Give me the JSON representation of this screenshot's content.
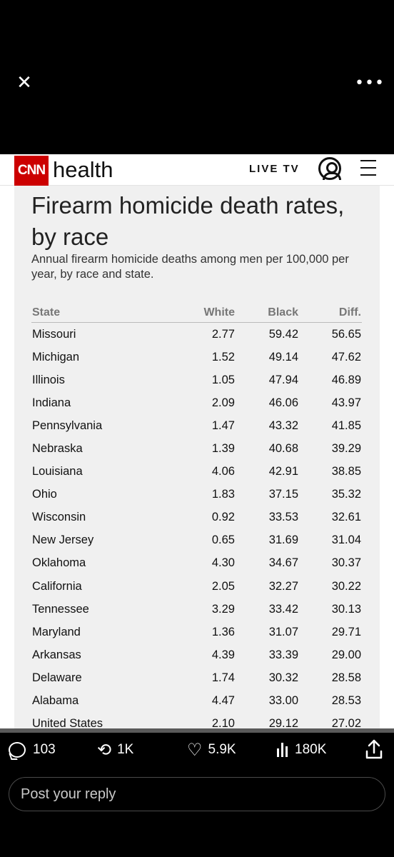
{
  "viewer": {
    "close_icon": "close-icon",
    "more_icon": "more-icon"
  },
  "cnn": {
    "logo_text": "CNN",
    "section": "health",
    "live_tv": "LIVE TV"
  },
  "article": {
    "title": "Firearm homicide death rates, by race",
    "subtitle": "Annual firearm homicide deaths among men per 100,000 per year, by race and state."
  },
  "table": {
    "headers": [
      "State",
      "White",
      "Black",
      "Diff."
    ],
    "rows": [
      [
        "Missouri",
        "2.77",
        "59.42",
        "56.65"
      ],
      [
        "Michigan",
        "1.52",
        "49.14",
        "47.62"
      ],
      [
        "Illinois",
        "1.05",
        "47.94",
        "46.89"
      ],
      [
        "Indiana",
        "2.09",
        "46.06",
        "43.97"
      ],
      [
        "Pennsylvania",
        "1.47",
        "43.32",
        "41.85"
      ],
      [
        "Nebraska",
        "1.39",
        "40.68",
        "39.29"
      ],
      [
        "Louisiana",
        "4.06",
        "42.91",
        "38.85"
      ],
      [
        "Ohio",
        "1.83",
        "37.15",
        "35.32"
      ],
      [
        "Wisconsin",
        "0.92",
        "33.53",
        "32.61"
      ],
      [
        "New Jersey",
        "0.65",
        "31.69",
        "31.04"
      ],
      [
        "Oklahoma",
        "4.30",
        "34.67",
        "30.37"
      ],
      [
        "California",
        "2.05",
        "32.27",
        "30.22"
      ],
      [
        "Tennessee",
        "3.29",
        "33.42",
        "30.13"
      ],
      [
        "Maryland",
        "1.36",
        "31.07",
        "29.71"
      ],
      [
        "Arkansas",
        "4.39",
        "33.39",
        "29.00"
      ],
      [
        "Delaware",
        "1.74",
        "30.32",
        "28.58"
      ],
      [
        "Alabama",
        "4.47",
        "33.00",
        "28.53"
      ],
      [
        "United States",
        "2.10",
        "29.12",
        "27.02"
      ]
    ]
  },
  "actions": {
    "replies": "103",
    "reposts": "1K",
    "likes": "5.9K",
    "views": "180K"
  },
  "reply": {
    "placeholder": "Post your reply"
  }
}
